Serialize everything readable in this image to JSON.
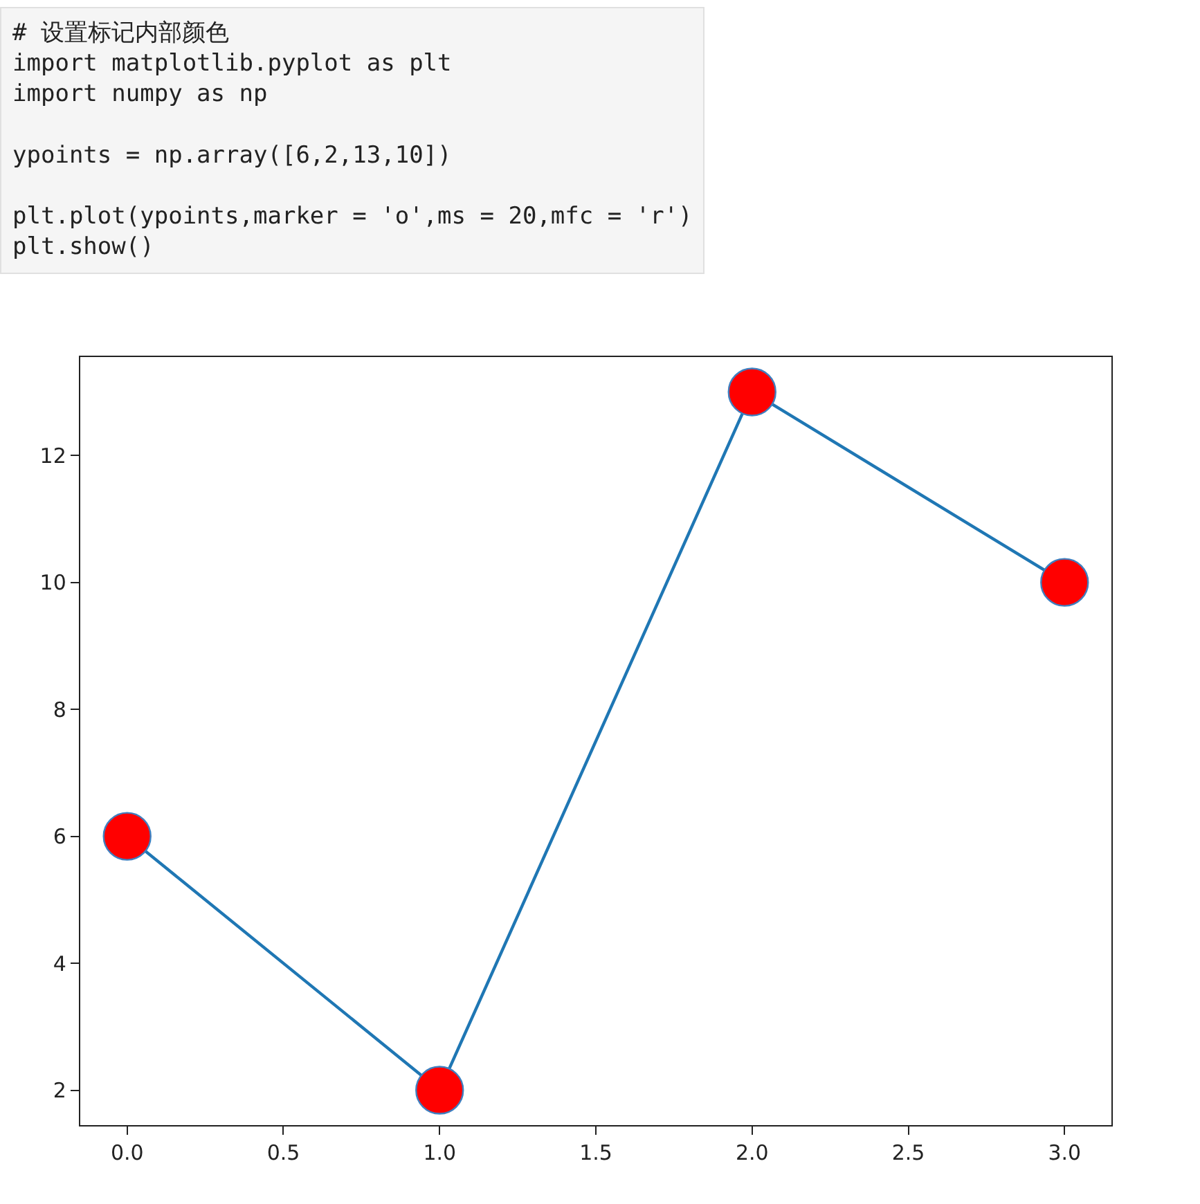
{
  "chart_data": {
    "type": "line",
    "annotations": [
      "# 设置标记内部颜色\nimport matplotlib.pyplot as plt\nimport numpy as np\n\nypoints = np.array([6,2,13,10])\n\nplt.plot(ypoints,marker = 'o',ms = 20,mfc = 'r')\nplt.show()"
    ],
    "x": [
      0,
      1,
      2,
      3
    ],
    "series": [
      {
        "color": "#1f77b4",
        "colors": [
          "#ff0000",
          "#ff0000",
          "#ff0000",
          "#ff0000"
        ],
        "values": [
          6,
          2,
          13,
          10
        ]
      }
    ],
    "xlim": [
      -0.15,
      3.15
    ],
    "xticks": [
      {
        "value": 0,
        "label": "0.0"
      },
      {
        "value": 0.5,
        "label": "0.5"
      },
      {
        "value": 1,
        "label": "1.0"
      },
      {
        "value": 1.5,
        "label": "1.5"
      },
      {
        "value": 2,
        "label": "2.0"
      },
      {
        "value": 2.5,
        "label": "2.5"
      },
      {
        "value": 3,
        "label": "3.0"
      }
    ],
    "ylim": [
      1.45,
      13.55
    ],
    "yticks": [
      2,
      4,
      6,
      8,
      10,
      12
    ],
    "marker": "circle",
    "line_style": "solid"
  }
}
